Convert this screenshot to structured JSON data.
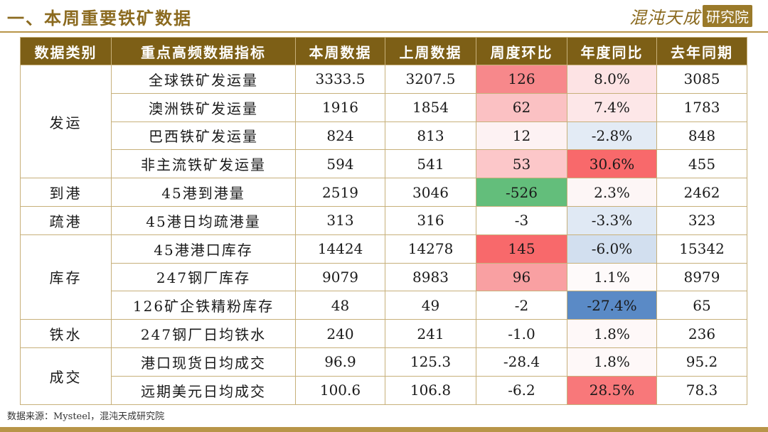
{
  "header": {
    "title": "一、本周重要铁矿数据",
    "brand_script": "混沌天成",
    "brand_box": "研究院"
  },
  "table": {
    "columns": [
      "数据类别",
      "重点高频数据指标",
      "本周数据",
      "上周数据",
      "周度环比",
      "年度同比",
      "去年同期"
    ],
    "groups": [
      {
        "category": "发运",
        "rows": [
          {
            "indicator": "全球铁矿发运量",
            "this_week": "3333.5",
            "last_week": "3207.5",
            "wow": "126",
            "yoy": "8.0%",
            "last_year": "3085",
            "wow_bg": "#f7888b",
            "yoy_bg": "#fde3e4"
          },
          {
            "indicator": "澳洲铁矿发运量",
            "this_week": "1916",
            "last_week": "1854",
            "wow": "62",
            "yoy": "7.4%",
            "last_year": "1783",
            "wow_bg": "#fbc1c3",
            "yoy_bg": "#fde7e8"
          },
          {
            "indicator": "巴西铁矿发运量",
            "this_week": "824",
            "last_week": "813",
            "wow": "12",
            "yoy": "-2.8%",
            "last_year": "848",
            "wow_bg": "#fdf2f3",
            "yoy_bg": "#e3ebf5"
          },
          {
            "indicator": "非主流铁矿发运量",
            "this_week": "594",
            "last_week": "541",
            "wow": "53",
            "yoy": "30.6%",
            "last_year": "455",
            "wow_bg": "#fcc7c9",
            "yoy_bg": "#f8696b"
          }
        ]
      },
      {
        "category": "到港",
        "rows": [
          {
            "indicator": "45港到港量",
            "this_week": "2519",
            "last_week": "3046",
            "wow": "-526",
            "yoy": "2.3%",
            "last_year": "2462",
            "wow_bg": "#63be7b",
            "yoy_bg": "#fdf6f6"
          }
        ]
      },
      {
        "category": "疏港",
        "rows": [
          {
            "indicator": "45港日均疏港量",
            "this_week": "313",
            "last_week": "316",
            "wow": "-3",
            "yoy": "-3.3%",
            "last_year": "323",
            "wow_bg": "#ffffff",
            "yoy_bg": "#e0e9f4"
          }
        ]
      },
      {
        "category": "库存",
        "rows": [
          {
            "indicator": "45港港口库存",
            "this_week": "14424",
            "last_week": "14278",
            "wow": "145",
            "yoy": "-6.0%",
            "last_year": "15342",
            "wow_bg": "#f8696b",
            "yoy_bg": "#d2dfef"
          },
          {
            "indicator": "247钢厂库存",
            "this_week": "9079",
            "last_week": "8983",
            "wow": "96",
            "yoy": "1.1%",
            "last_year": "8979",
            "wow_bg": "#f9a0a2",
            "yoy_bg": "#fefafa"
          },
          {
            "indicator": "126矿企铁精粉库存",
            "this_week": "48",
            "last_week": "49",
            "wow": "-2",
            "yoy": "-27.4%",
            "last_year": "65",
            "wow_bg": "#ffffff",
            "yoy_bg": "#5a8ac6"
          }
        ]
      },
      {
        "category": "铁水",
        "rows": [
          {
            "indicator": "247钢厂日均铁水",
            "this_week": "240",
            "last_week": "241",
            "wow": "-1.0",
            "yoy": "1.8%",
            "last_year": "236",
            "wow_bg": "#ffffff",
            "yoy_bg": "#fef8f8"
          }
        ]
      },
      {
        "category": "成交",
        "rows": [
          {
            "indicator": "港口现货日均成交",
            "this_week": "96.9",
            "last_week": "125.3",
            "wow": "-28.4",
            "yoy": "1.8%",
            "last_year": "95.2",
            "wow_bg": "#ffffff",
            "yoy_bg": "#fef8f8"
          },
          {
            "indicator": "远期美元日均成交",
            "this_week": "100.6",
            "last_week": "106.8",
            "wow": "-6.2",
            "yoy": "28.5%",
            "last_year": "78.3",
            "wow_bg": "#ffffff",
            "yoy_bg": "#f8787a"
          }
        ]
      }
    ]
  },
  "footer": {
    "source": "数据来源：Mysteel，混沌天成研究院"
  },
  "colors": {
    "header_bg": "#7d5f16",
    "accent": "#b89548",
    "grid": "#c7b07a"
  }
}
